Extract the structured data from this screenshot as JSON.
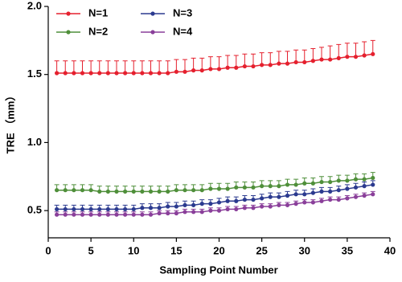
{
  "chart_data": {
    "type": "line",
    "x_label": "Sampling Point Number",
    "y_label": "TRE （mm）",
    "x": [
      1,
      2,
      3,
      4,
      5,
      6,
      7,
      8,
      9,
      10,
      11,
      12,
      13,
      14,
      15,
      16,
      17,
      18,
      19,
      20,
      21,
      22,
      23,
      24,
      25,
      26,
      27,
      28,
      29,
      30,
      31,
      32,
      33,
      34,
      35,
      36,
      37,
      38
    ],
    "series": [
      {
        "name": "N=1",
        "color": "#e5202e",
        "values": [
          1.51,
          1.51,
          1.51,
          1.51,
          1.51,
          1.51,
          1.51,
          1.51,
          1.51,
          1.51,
          1.51,
          1.51,
          1.51,
          1.51,
          1.52,
          1.52,
          1.53,
          1.53,
          1.54,
          1.54,
          1.55,
          1.55,
          1.56,
          1.56,
          1.57,
          1.57,
          1.58,
          1.58,
          1.59,
          1.59,
          1.6,
          1.61,
          1.61,
          1.62,
          1.63,
          1.63,
          1.64,
          1.65
        ],
        "errors": [
          0.09,
          0.09,
          0.09,
          0.09,
          0.09,
          0.09,
          0.09,
          0.09,
          0.09,
          0.09,
          0.09,
          0.09,
          0.09,
          0.09,
          0.09,
          0.09,
          0.09,
          0.09,
          0.09,
          0.09,
          0.09,
          0.09,
          0.09,
          0.09,
          0.09,
          0.09,
          0.09,
          0.09,
          0.09,
          0.09,
          0.09,
          0.09,
          0.1,
          0.1,
          0.1,
          0.1,
          0.1,
          0.1
        ]
      },
      {
        "name": "N=2",
        "color": "#4f8f3a",
        "values": [
          0.65,
          0.65,
          0.65,
          0.65,
          0.65,
          0.64,
          0.64,
          0.64,
          0.64,
          0.64,
          0.64,
          0.64,
          0.64,
          0.64,
          0.65,
          0.65,
          0.65,
          0.65,
          0.66,
          0.66,
          0.66,
          0.67,
          0.67,
          0.67,
          0.68,
          0.68,
          0.68,
          0.69,
          0.69,
          0.7,
          0.7,
          0.71,
          0.71,
          0.72,
          0.72,
          0.73,
          0.73,
          0.74
        ],
        "errors": [
          0.04,
          0.04,
          0.04,
          0.04,
          0.04,
          0.04,
          0.04,
          0.04,
          0.04,
          0.04,
          0.04,
          0.04,
          0.04,
          0.04,
          0.04,
          0.04,
          0.04,
          0.04,
          0.04,
          0.04,
          0.04,
          0.04,
          0.04,
          0.04,
          0.04,
          0.04,
          0.04,
          0.04,
          0.04,
          0.04,
          0.04,
          0.04,
          0.04,
          0.04,
          0.04,
          0.04,
          0.04,
          0.04
        ]
      },
      {
        "name": "N=3",
        "color": "#2b3a8f",
        "values": [
          0.51,
          0.51,
          0.51,
          0.51,
          0.51,
          0.51,
          0.51,
          0.51,
          0.51,
          0.51,
          0.52,
          0.52,
          0.52,
          0.53,
          0.53,
          0.54,
          0.54,
          0.55,
          0.55,
          0.56,
          0.57,
          0.57,
          0.58,
          0.58,
          0.59,
          0.6,
          0.6,
          0.61,
          0.62,
          0.62,
          0.63,
          0.64,
          0.64,
          0.65,
          0.66,
          0.67,
          0.68,
          0.69
        ],
        "errors": [
          0.03,
          0.03,
          0.03,
          0.03,
          0.03,
          0.03,
          0.03,
          0.03,
          0.03,
          0.03,
          0.03,
          0.03,
          0.03,
          0.03,
          0.03,
          0.03,
          0.03,
          0.03,
          0.03,
          0.03,
          0.03,
          0.03,
          0.03,
          0.03,
          0.03,
          0.03,
          0.03,
          0.03,
          0.03,
          0.03,
          0.03,
          0.03,
          0.03,
          0.03,
          0.03,
          0.03,
          0.03,
          0.03
        ]
      },
      {
        "name": "N=4",
        "color": "#8a3f9a",
        "values": [
          0.47,
          0.47,
          0.47,
          0.47,
          0.47,
          0.47,
          0.47,
          0.47,
          0.47,
          0.47,
          0.47,
          0.47,
          0.48,
          0.48,
          0.48,
          0.49,
          0.49,
          0.49,
          0.5,
          0.5,
          0.51,
          0.51,
          0.52,
          0.52,
          0.53,
          0.53,
          0.54,
          0.54,
          0.55,
          0.56,
          0.56,
          0.57,
          0.58,
          0.58,
          0.59,
          0.6,
          0.61,
          0.62
        ],
        "errors": [
          0.02,
          0.02,
          0.02,
          0.02,
          0.02,
          0.02,
          0.02,
          0.02,
          0.02,
          0.02,
          0.02,
          0.02,
          0.02,
          0.02,
          0.02,
          0.02,
          0.02,
          0.02,
          0.02,
          0.02,
          0.02,
          0.02,
          0.02,
          0.02,
          0.02,
          0.02,
          0.02,
          0.02,
          0.02,
          0.02,
          0.02,
          0.02,
          0.02,
          0.02,
          0.02,
          0.02,
          0.02,
          0.02
        ]
      }
    ],
    "xlim": [
      0,
      40
    ],
    "xticks": [
      0,
      5,
      10,
      15,
      20,
      25,
      30,
      35,
      40
    ],
    "ylim": [
      0.3,
      2.0
    ],
    "yticks": [
      0.5,
      {
        "value": 1,
        "label": "1.0"
      },
      1.5,
      {
        "value": 2,
        "label": "2.0"
      }
    ],
    "grid": false,
    "legend": "upper left"
  }
}
